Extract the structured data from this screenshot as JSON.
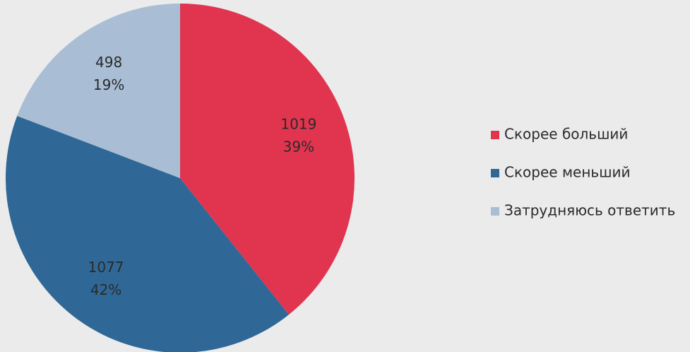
{
  "chart_data": {
    "type": "pie",
    "categories": [
      "Скорее больший",
      "Скорее меньший",
      "Затрудняюсь ответить"
    ],
    "values": [
      1019,
      1077,
      498
    ],
    "percent_labels": [
      "39%",
      "42%",
      "19%"
    ],
    "colors": [
      "#e1354f",
      "#2f6896",
      "#a9bed5"
    ],
    "legend": "right"
  }
}
